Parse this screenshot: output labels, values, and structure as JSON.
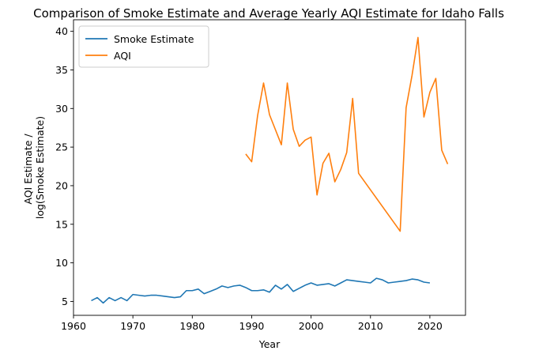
{
  "chart_data": {
    "type": "line",
    "title": "Comparison of Smoke Estimate and Average Yearly AQI Estimate for Idaho Falls",
    "xlabel": "Year",
    "ylabel_lines": [
      "AQI Estimate /",
      "log(Smoke Estimate)"
    ],
    "xlim": [
      1960,
      2026
    ],
    "ylim": [
      3.2,
      41.5
    ],
    "xticks": [
      1960,
      1970,
      1980,
      1990,
      2000,
      2010,
      2020
    ],
    "yticks": [
      5,
      10,
      15,
      20,
      25,
      30,
      35,
      40
    ],
    "legend_position": "top-left",
    "grid": false,
    "series": [
      {
        "name": "Smoke Estimate",
        "color": "#1f77b4",
        "x": [
          1963,
          1964,
          1965,
          1966,
          1967,
          1968,
          1969,
          1970,
          1971,
          1972,
          1973,
          1974,
          1975,
          1976,
          1977,
          1978,
          1979,
          1980,
          1981,
          1982,
          1983,
          1984,
          1985,
          1986,
          1987,
          1988,
          1989,
          1990,
          1991,
          1992,
          1993,
          1994,
          1995,
          1996,
          1997,
          1998,
          1999,
          2000,
          2001,
          2002,
          2003,
          2004,
          2005,
          2006,
          2007,
          2008,
          2009,
          2010,
          2011,
          2012,
          2013,
          2014,
          2015,
          2016,
          2017,
          2018,
          2019,
          2020
        ],
        "y": [
          5.1,
          5.5,
          4.8,
          5.5,
          5.1,
          5.5,
          5.1,
          5.9,
          5.8,
          5.7,
          5.8,
          5.8,
          5.7,
          5.6,
          5.5,
          5.6,
          6.4,
          6.4,
          6.6,
          6.0,
          6.3,
          6.6,
          7.0,
          6.8,
          7.0,
          7.1,
          6.8,
          6.4,
          6.4,
          6.5,
          6.2,
          7.1,
          6.6,
          7.2,
          6.3,
          6.7,
          7.1,
          7.4,
          7.1,
          7.2,
          7.3,
          7.0,
          7.4,
          7.8,
          7.7,
          7.6,
          7.5,
          7.4,
          8.0,
          7.8,
          7.4,
          7.5,
          7.6,
          7.7,
          7.9,
          7.8,
          7.5,
          7.4
        ]
      },
      {
        "name": "AQI",
        "color": "#ff7f0e",
        "x": [
          1989,
          1990,
          1991,
          1992,
          1993,
          1995,
          1996,
          1997,
          1998,
          1999,
          2000,
          2001,
          2002,
          2003,
          2004,
          2005,
          2006,
          2007,
          2008,
          2015,
          2016,
          2017,
          2018,
          2019,
          2020,
          2021,
          2022,
          2023
        ],
        "y": [
          24.1,
          23.1,
          29.1,
          33.3,
          29.2,
          25.3,
          33.3,
          27.3,
          25.1,
          25.9,
          26.3,
          18.8,
          22.9,
          24.2,
          20.5,
          22.1,
          24.3,
          31.3,
          21.6,
          14.1,
          30.1,
          34.3,
          39.2,
          28.9,
          32.1,
          33.9,
          24.6,
          22.8
        ]
      }
    ]
  }
}
